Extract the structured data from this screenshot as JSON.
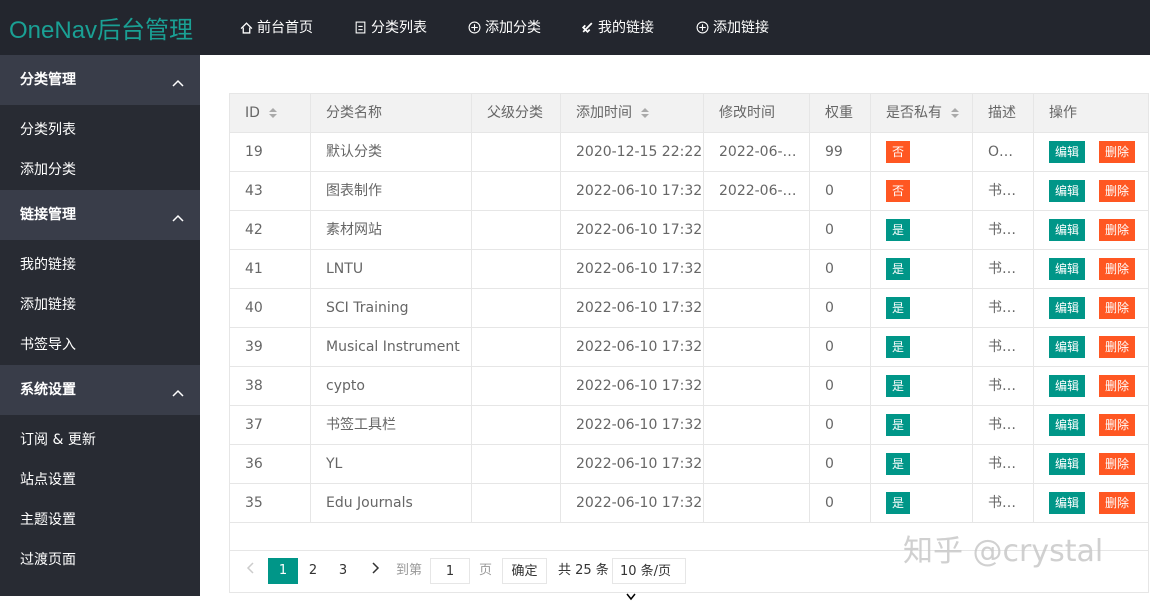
{
  "header": {
    "logo": "OneNav后台管理",
    "nav": [
      "前台首页",
      "分类列表",
      "添加分类",
      "我的链接",
      "添加链接"
    ]
  },
  "sidebar": {
    "groups": [
      {
        "title": "分类管理",
        "items": [
          "分类列表",
          "添加分类"
        ]
      },
      {
        "title": "链接管理",
        "items": [
          "我的链接",
          "添加链接",
          "书签导入"
        ]
      },
      {
        "title": "系统设置",
        "items": [
          "订阅 & 更新",
          "站点设置",
          "主题设置",
          "过渡页面"
        ]
      }
    ]
  },
  "table": {
    "columns": [
      {
        "label": "ID",
        "sortable": true
      },
      {
        "label": "分类名称",
        "sortable": false
      },
      {
        "label": "父级分类",
        "sortable": false
      },
      {
        "label": "添加时间",
        "sortable": true
      },
      {
        "label": "修改时间",
        "sortable": false
      },
      {
        "label": "权重",
        "sortable": false
      },
      {
        "label": "是否私有",
        "sortable": true
      },
      {
        "label": "描述",
        "sortable": false
      },
      {
        "label": "操作",
        "sortable": false
      }
    ],
    "badge_colors": {
      "否": "#ff5722",
      "是": "#009688"
    },
    "actions": [
      "编辑",
      "删除"
    ],
    "rows": [
      {
        "id": 19,
        "name": "默认分类",
        "added": "2020-12-15 22:22",
        "modified": "2022-06-…",
        "weight": 99,
        "private": "否",
        "desc": "O…"
      },
      {
        "id": 43,
        "name": "图表制作",
        "added": "2022-06-10 17:32",
        "modified": "2022-06-…",
        "weight": 0,
        "private": "否",
        "desc": "书…"
      },
      {
        "id": 42,
        "name": "素材网站",
        "added": "2022-06-10 17:32",
        "weight": 0,
        "private": "是",
        "desc": "书…"
      },
      {
        "id": 41,
        "name": "LNTU",
        "added": "2022-06-10 17:32",
        "weight": 0,
        "private": "是",
        "desc": "书…"
      },
      {
        "id": 40,
        "name": "SCI Training",
        "added": "2022-06-10 17:32",
        "weight": 0,
        "private": "是",
        "desc": "书…"
      },
      {
        "id": 39,
        "name": "Musical Instrument",
        "added": "2022-06-10 17:32",
        "weight": 0,
        "private": "是",
        "desc": "书…"
      },
      {
        "id": 38,
        "name": "cypto",
        "added": "2022-06-10 17:32",
        "weight": 0,
        "private": "是",
        "desc": "书…"
      },
      {
        "id": 37,
        "name": "书签工具栏",
        "added": "2022-06-10 17:32",
        "weight": 0,
        "private": "是",
        "desc": "书…"
      },
      {
        "id": 36,
        "name": "YL",
        "added": "2022-06-10 17:32",
        "weight": 0,
        "private": "是",
        "desc": "书…"
      },
      {
        "id": 35,
        "name": "Edu Journals",
        "added": "2022-06-10 17:32",
        "weight": 0,
        "private": "是",
        "desc": "书…"
      }
    ]
  },
  "pagination": {
    "pages": [
      1,
      2,
      3
    ],
    "current": 1,
    "goto": "到第",
    "input": 1,
    "page_unit": "页",
    "confirm": "确定",
    "total": "共 25 条",
    "page_size": "10 条/页"
  },
  "watermark": "知乎 @crystal"
}
